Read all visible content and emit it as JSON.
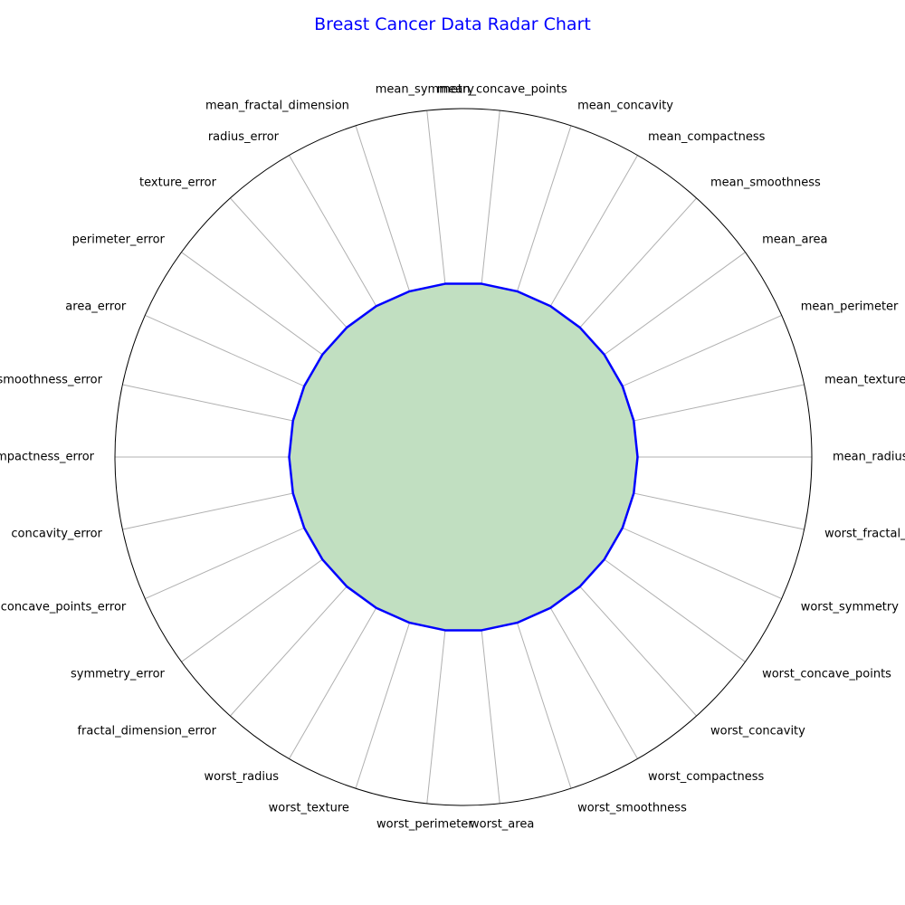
{
  "chart_data": {
    "type": "radar",
    "title": "Breast Cancer Data Radar Chart",
    "categories": [
      "mean_radius",
      "mean_texture",
      "mean_perimeter",
      "mean_area",
      "mean_smoothness",
      "mean_compactness",
      "mean_concavity",
      "mean_concave_points",
      "mean_symmetry",
      "mean_fractal_dimension",
      "radius_error",
      "texture_error",
      "perimeter_error",
      "area_error",
      "smoothness_error",
      "compactness_error",
      "concavity_error",
      "concave_points_error",
      "symmetry_error",
      "fractal_dimension_error",
      "worst_radius",
      "worst_texture",
      "worst_perimeter",
      "worst_area",
      "worst_smoothness",
      "worst_compactness",
      "worst_concavity",
      "worst_concave_points",
      "worst_symmetry",
      "worst_fractal_dimension"
    ],
    "values": [
      0.5,
      0.5,
      0.5,
      0.5,
      0.5,
      0.5,
      0.5,
      0.5,
      0.5,
      0.5,
      0.5,
      0.5,
      0.5,
      0.5,
      0.5,
      0.5,
      0.5,
      0.5,
      0.5,
      0.5,
      0.5,
      0.5,
      0.5,
      0.5,
      0.5,
      0.5,
      0.5,
      0.5,
      0.5,
      0.5
    ],
    "rlim": [
      0,
      1
    ],
    "grid": true,
    "line_color": "#0000ff",
    "fill_color": "#c1dfc1",
    "title_color": "#0000ff"
  }
}
